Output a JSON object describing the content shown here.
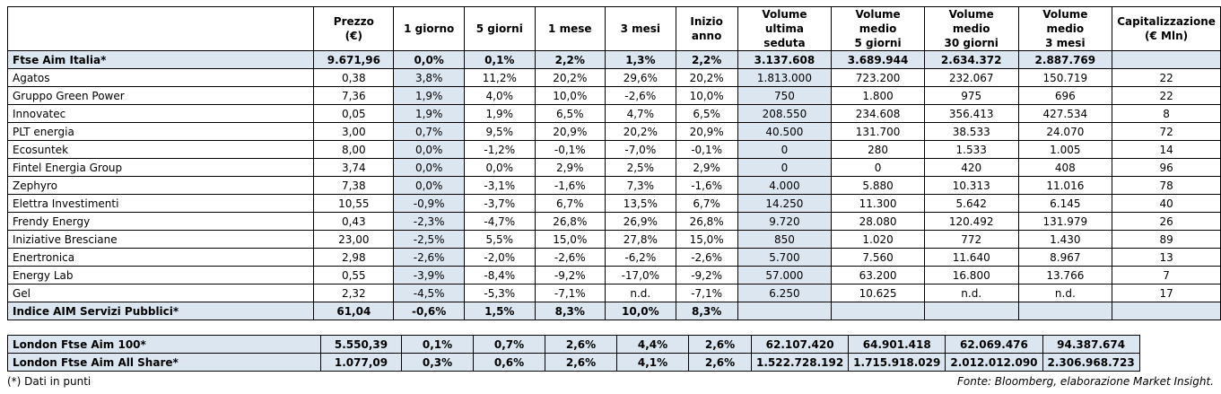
{
  "headers": [
    "",
    "Prezzo\n(€)",
    "1 giorno",
    "5 giorni",
    "1 mese",
    "3 mesi",
    "Inizio anno",
    "Volume ultima\nseduta",
    "Volume medio\n5 giorni",
    "Volume medio\n30 giorni",
    "Volume medio\n3 mesi",
    "Capitalizzazione\n(€ Mln)"
  ],
  "index_top": [
    "Ftse Aim Italia*",
    "9.671,96",
    "0,0%",
    "0,1%",
    "2,2%",
    "1,3%",
    "2,2%",
    "3.137.608",
    "3.689.944",
    "2.634.372",
    "2.887.769",
    ""
  ],
  "rows": [
    [
      "Agatos",
      "0,38",
      "3,8%",
      "11,2%",
      "20,2%",
      "29,6%",
      "20,2%",
      "1.813.000",
      "723.200",
      "232.067",
      "150.719",
      "22"
    ],
    [
      "Gruppo Green Power",
      "7,36",
      "1,9%",
      "4,0%",
      "10,0%",
      "-2,6%",
      "10,0%",
      "750",
      "1.800",
      "975",
      "696",
      "22"
    ],
    [
      "Innovatec",
      "0,05",
      "1,9%",
      "1,9%",
      "6,5%",
      "4,7%",
      "6,5%",
      "208.550",
      "234.608",
      "356.413",
      "427.534",
      "8"
    ],
    [
      "PLT energia",
      "3,00",
      "0,7%",
      "9,5%",
      "20,9%",
      "20,2%",
      "20,9%",
      "40.500",
      "131.700",
      "38.533",
      "24.070",
      "72"
    ],
    [
      "Ecosuntek",
      "8,00",
      "0,0%",
      "-1,2%",
      "-0,1%",
      "-7,0%",
      "-0,1%",
      "0",
      "280",
      "1.533",
      "1.005",
      "14"
    ],
    [
      "Fintel Energia Group",
      "3,74",
      "0,0%",
      "0,0%",
      "2,9%",
      "2,5%",
      "2,9%",
      "0",
      "0",
      "420",
      "408",
      "96"
    ],
    [
      "Zephyro",
      "7,38",
      "0,0%",
      "-3,1%",
      "-1,6%",
      "7,3%",
      "-1,6%",
      "4.000",
      "5.880",
      "10.313",
      "11.016",
      "78"
    ],
    [
      "Elettra Investimenti",
      "10,55",
      "-0,9%",
      "-3,7%",
      "6,7%",
      "13,5%",
      "6,7%",
      "14.250",
      "11.300",
      "5.642",
      "6.145",
      "40"
    ],
    [
      "Frendy Energy",
      "0,43",
      "-2,3%",
      "-4,7%",
      "26,8%",
      "26,9%",
      "26,8%",
      "9.720",
      "28.080",
      "120.492",
      "131.979",
      "26"
    ],
    [
      "Iniziative Bresciane",
      "23,00",
      "-2,5%",
      "5,5%",
      "15,0%",
      "27,8%",
      "15,0%",
      "850",
      "1.020",
      "772",
      "1.430",
      "89"
    ],
    [
      "Enertronica",
      "2,98",
      "-2,6%",
      "-2,0%",
      "-2,6%",
      "-6,2%",
      "-2,6%",
      "5.700",
      "7.560",
      "11.640",
      "8.967",
      "13"
    ],
    [
      "Energy Lab",
      "0,55",
      "-3,9%",
      "-8,4%",
      "-9,2%",
      "-17,0%",
      "-9,2%",
      "57.000",
      "63.200",
      "16.800",
      "13.766",
      "7"
    ],
    [
      "Gel",
      "2,32",
      "-4,5%",
      "-5,3%",
      "-7,1%",
      "n.d.",
      "-7,1%",
      "6.250",
      "10.625",
      "n.d.",
      "n.d.",
      "17"
    ]
  ],
  "index_bottom": [
    "Indice AIM Servizi Pubblici*",
    "61,04",
    "-0,6%",
    "1,5%",
    "8,3%",
    "10,0%",
    "8,3%",
    "",
    "",
    "",
    "",
    ""
  ],
  "london": [
    [
      "London Ftse Aim 100*",
      "5.550,39",
      "0,1%",
      "0,7%",
      "2,6%",
      "4,4%",
      "2,6%",
      "62.107.420",
      "64.901.418",
      "62.069.476",
      "94.387.674"
    ],
    [
      "London Ftse Aim All Share*",
      "1.077,09",
      "0,3%",
      "0,6%",
      "2,6%",
      "4,1%",
      "2,6%",
      "1.522.728.192",
      "1.715.918.029",
      "2.012.012.090",
      "2.306.968.723"
    ]
  ],
  "notes": {
    "left": "(*) Dati in punti",
    "right": "Fonte: Bloomberg, elaborazione Market Insight."
  }
}
